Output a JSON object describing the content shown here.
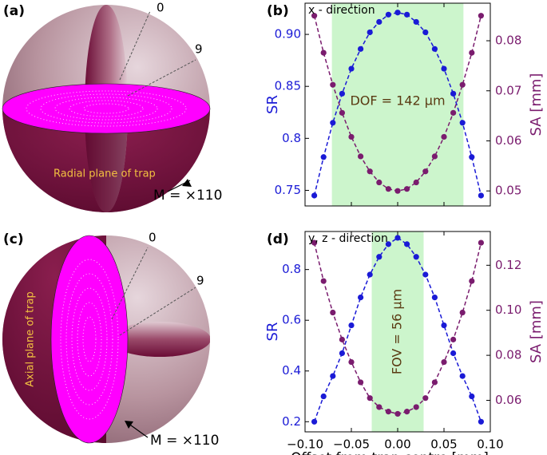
{
  "chart_data": [
    {
      "type": "line",
      "panel_label": "(b)",
      "title": "x - direction",
      "annotation": "DOF = 142 μm",
      "span": [
        -0.071,
        0.071
      ],
      "span_color": "#ccf5cc",
      "x": [
        -0.09,
        -0.08,
        -0.07,
        -0.06,
        -0.05,
        -0.04,
        -0.03,
        -0.02,
        -0.01,
        0,
        0.01,
        0.02,
        0.03,
        0.04,
        0.05,
        0.06,
        0.07,
        0.08,
        0.09
      ],
      "series": [
        {
          "name": "SR",
          "color": "#1a1ad6",
          "values": [
            0.745,
            0.782,
            0.815,
            0.843,
            0.867,
            0.886,
            0.902,
            0.912,
            0.919,
            0.921,
            0.919,
            0.912,
            0.902,
            0.886,
            0.867,
            0.843,
            0.815,
            0.782,
            0.745
          ]
        },
        {
          "name": "SA [mm]",
          "axis": "y2",
          "color": "#7a1c6e",
          "values": [
            0.085,
            0.0776,
            0.0712,
            0.0656,
            0.0608,
            0.0569,
            0.0539,
            0.0517,
            0.0504,
            0.05,
            0.0504,
            0.0517,
            0.0539,
            0.0569,
            0.0608,
            0.0656,
            0.0712,
            0.0776,
            0.085
          ]
        }
      ],
      "xlim": [
        -0.1,
        0.1
      ],
      "xticks": [
        -0.1,
        -0.05,
        0,
        0.05,
        0.1
      ],
      "ylim": [
        0.735,
        0.93
      ],
      "yticks": [
        0.75,
        0.8,
        0.85,
        {
          "value": 0.9,
          "label": "0.90"
        }
      ],
      "y2lim": [
        0.047,
        0.0875
      ],
      "y2ticks": [
        0.05,
        0.06,
        0.07,
        0.08
      ]
    },
    {
      "type": "line",
      "panel_label": "(d)",
      "title": "y, z - direction",
      "annotation": "FOV = 56 μm",
      "span": [
        -0.028,
        0.028
      ],
      "span_color": "#ccf5cc",
      "xlabel": "Offset from trap centre [mm]",
      "x": [
        -0.09,
        -0.08,
        -0.07,
        -0.06,
        -0.05,
        -0.04,
        -0.03,
        -0.02,
        -0.01,
        0,
        0.01,
        0.02,
        0.03,
        0.04,
        0.05,
        0.06,
        0.07,
        0.08,
        0.09
      ],
      "series": [
        {
          "name": "SR",
          "color": "#1a1ad6",
          "values": [
            0.2,
            0.3,
            0.38,
            0.47,
            0.58,
            0.69,
            0.78,
            0.85,
            0.9,
            0.925,
            0.9,
            0.85,
            0.78,
            0.69,
            0.58,
            0.47,
            0.38,
            0.3,
            0.2
          ]
        },
        {
          "name": "SA [mm]",
          "axis": "y2",
          "color": "#7a1c6e",
          "values": [
            0.13,
            0.113,
            0.099,
            0.087,
            0.077,
            0.068,
            0.061,
            0.057,
            0.055,
            0.054,
            0.055,
            0.057,
            0.061,
            0.068,
            0.077,
            0.087,
            0.099,
            0.113,
            0.13
          ]
        }
      ],
      "xlim": [
        -0.1,
        0.1
      ],
      "xticks": [
        {
          "value": -0.1,
          "label": "−0.10"
        },
        {
          "value": -0.05,
          "label": "−0.05"
        },
        {
          "value": 0,
          "label": "0.00"
        },
        0.05,
        {
          "value": 0.1,
          "label": "0.10"
        }
      ],
      "ylim": [
        0.16,
        0.95
      ],
      "yticks": [
        0.2,
        0.4,
        0.6,
        0.8
      ],
      "y2lim": [
        0.046,
        0.135
      ],
      "y2ticks": [
        0.06,
        0.08,
        {
          "value": 0.1,
          "label": "0.10"
        },
        0.12
      ]
    }
  ],
  "illustrations": [
    {
      "panel_label": "(a)",
      "marker_top": "0",
      "marker_side": "9",
      "plane_label": "Radial plane of trap",
      "magnification": "M = ×110"
    },
    {
      "panel_label": "(c)",
      "marker_top": "0",
      "marker_side": "9",
      "plane_label": "Axial plane of trap",
      "magnification": "M = ×110"
    }
  ]
}
